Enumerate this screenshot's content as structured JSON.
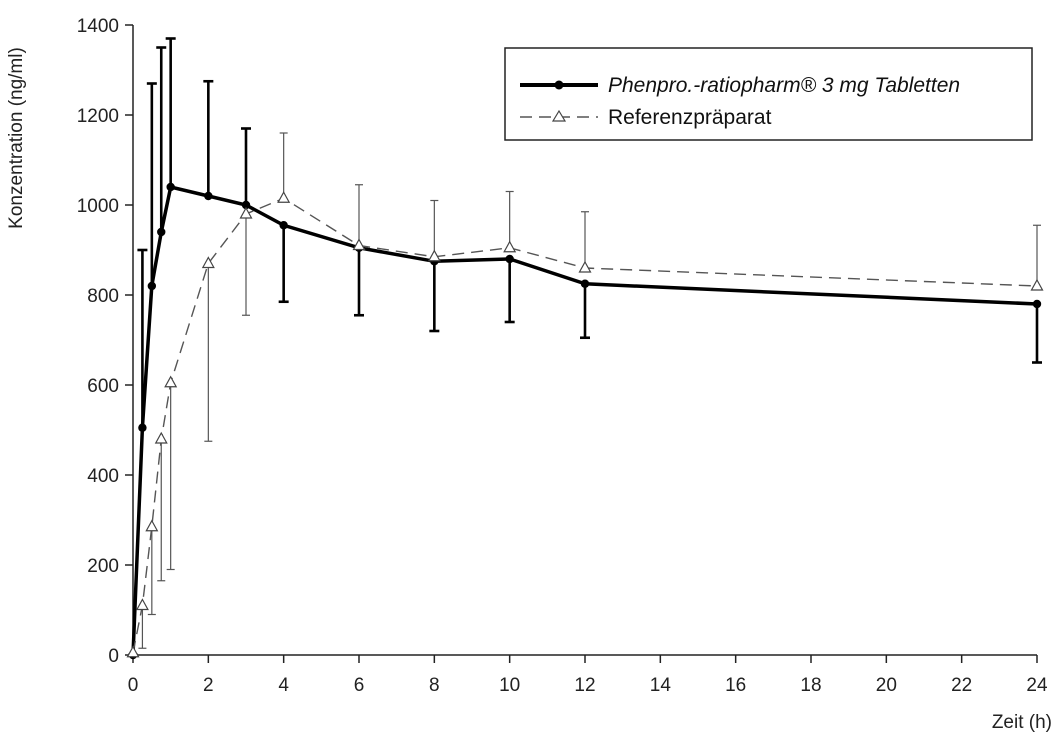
{
  "chart_data": {
    "type": "line",
    "xlabel": "Zeit (h)",
    "ylabel": "Konzentration (ng/ml)",
    "xlim": [
      0,
      24
    ],
    "ylim": [
      0,
      1400
    ],
    "xticks": [
      0,
      2,
      4,
      6,
      8,
      10,
      12,
      14,
      16,
      18,
      20,
      22,
      24
    ],
    "yticks": [
      0,
      200,
      400,
      600,
      800,
      1000,
      1200,
      1400
    ],
    "grid": false,
    "legend_position": "top-right",
    "series": [
      {
        "name": "Phenpro.-ratiopharm® 3 mg Tabletten",
        "style": "solid-bold",
        "marker": "filled-circle",
        "color": "#000000",
        "x": [
          0,
          0.25,
          0.5,
          0.75,
          1,
          2,
          3,
          4,
          6,
          8,
          10,
          12,
          24
        ],
        "y": [
          0,
          505,
          820,
          940,
          1040,
          1020,
          1000,
          955,
          905,
          875,
          880,
          825,
          780
        ],
        "error_upper": [
          0,
          900,
          1270,
          1350,
          1370,
          1275,
          1170,
          null,
          null,
          null,
          null,
          null,
          null
        ],
        "error_lower": [
          null,
          null,
          null,
          null,
          null,
          null,
          null,
          785,
          755,
          720,
          740,
          705,
          650
        ]
      },
      {
        "name": "Referenzpräparat",
        "style": "dashed",
        "marker": "open-triangle",
        "color": "#555555",
        "x": [
          0,
          0.25,
          0.5,
          0.75,
          1,
          2,
          3,
          4,
          6,
          8,
          10,
          12,
          24
        ],
        "y": [
          5,
          110,
          285,
          480,
          605,
          870,
          980,
          1015,
          910,
          885,
          905,
          860,
          820
        ],
        "error_upper": [
          null,
          null,
          null,
          null,
          null,
          null,
          null,
          1160,
          1045,
          1010,
          1030,
          985,
          955
        ],
        "error_lower": [
          null,
          15,
          90,
          165,
          190,
          475,
          755,
          null,
          null,
          null,
          null,
          null,
          null
        ]
      }
    ]
  }
}
